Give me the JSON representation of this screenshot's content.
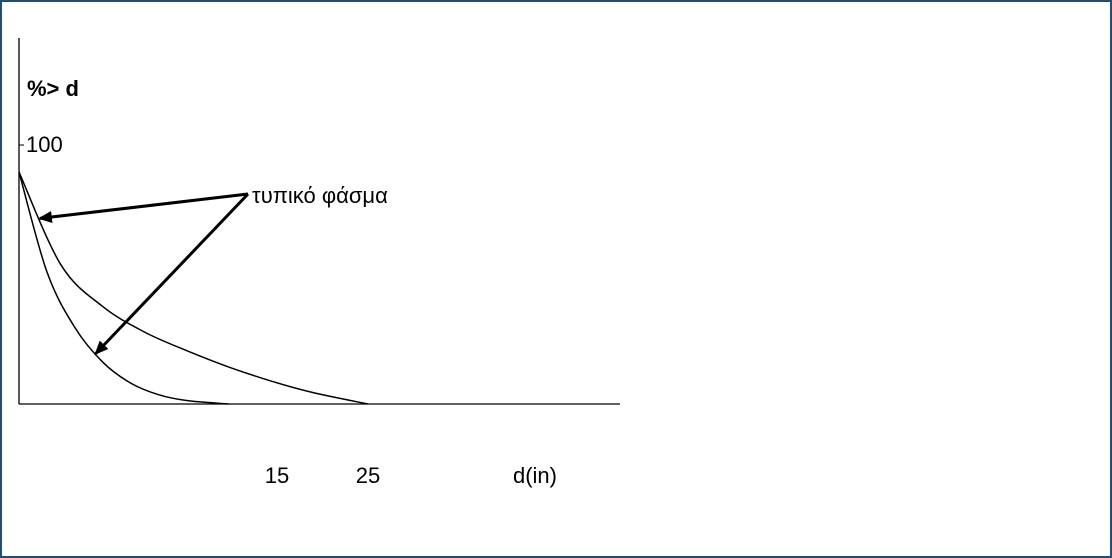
{
  "chart_data": {
    "type": "line",
    "title": "",
    "ylabel": "%> d",
    "xlabel": "d(in)",
    "ylim": [
      0,
      100
    ],
    "y_ticks": [
      "100"
    ],
    "x_ticks": [
      {
        "value": 15,
        "label": "15"
      },
      {
        "value": 25,
        "label": "25"
      }
    ],
    "series": [
      {
        "x": [
          0,
          2,
          4,
          6,
          8,
          10,
          12,
          15
        ],
        "y": [
          100,
          57,
          33,
          18,
          9,
          4,
          1.5,
          0
        ]
      },
      {
        "x": [
          0,
          3,
          6,
          9,
          12,
          15,
          18,
          21,
          25
        ],
        "y": [
          100,
          60,
          42,
          31,
          23,
          16,
          10,
          5,
          0
        ]
      }
    ],
    "annotation": {
      "text": "τυπικό φάσμα",
      "targets": [
        {
          "series": 1,
          "x": 1.5
        },
        {
          "series": 0,
          "x": 5.5
        }
      ]
    }
  },
  "colors": {
    "border": "#1f4e79",
    "ink": "#000000"
  }
}
